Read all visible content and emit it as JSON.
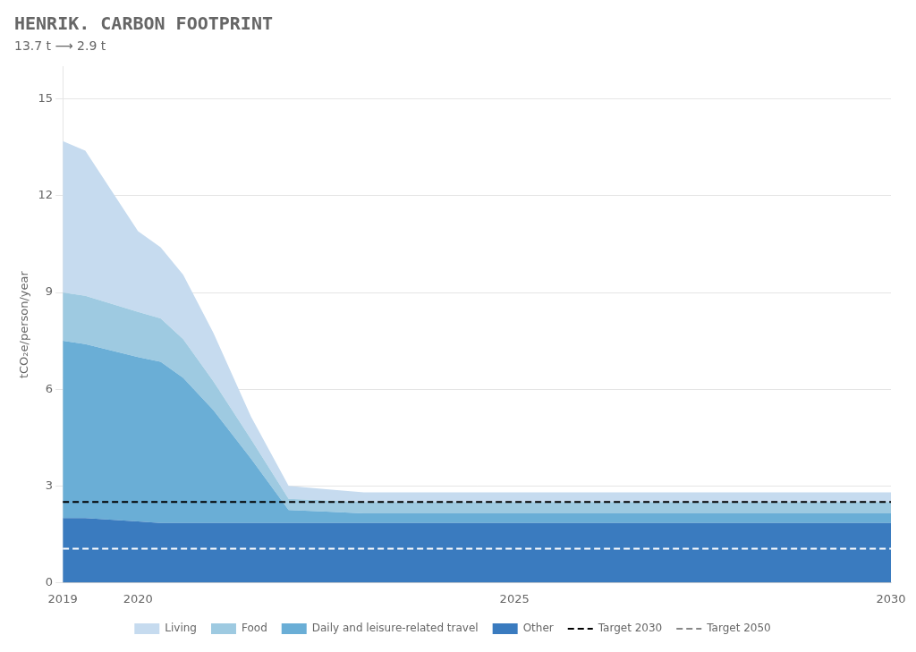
{
  "chart_data": {
    "type": "area",
    "title": "HENRIK. CARBON FOOTPRINT",
    "subtitle": "13.7 t ⟶ 2.9 t",
    "ylabel": "tCO₂e/person/year",
    "stacked": true,
    "grid": "y",
    "legend": "bottom",
    "xlim": [
      2019,
      2030
    ],
    "xticks": [
      2019,
      2020,
      2025,
      2030
    ],
    "ylim": [
      0,
      16
    ],
    "yticks": [
      0,
      3,
      6,
      9,
      12,
      15
    ],
    "x": [
      2019,
      2019.3,
      2020,
      2020.3,
      2020.6,
      2021,
      2021.5,
      2022,
      2022.5,
      2023,
      2024,
      2025,
      2026,
      2027,
      2028,
      2029,
      2030
    ],
    "series": [
      {
        "name": "Other",
        "color": "#3a7bbf",
        "values": [
          2.0,
          2.0,
          1.9,
          1.85,
          1.85,
          1.85,
          1.85,
          1.85,
          1.85,
          1.85,
          1.85,
          1.85,
          1.85,
          1.85,
          1.85,
          1.85,
          1.85
        ]
      },
      {
        "name": "Daily and leisure-related travel",
        "color": "#6aaed6",
        "values": [
          5.5,
          5.4,
          5.1,
          5.0,
          4.5,
          3.5,
          2.0,
          0.4,
          0.35,
          0.3,
          0.3,
          0.3,
          0.3,
          0.3,
          0.3,
          0.3,
          0.3
        ]
      },
      {
        "name": "Food",
        "color": "#9ecae1",
        "values": [
          1.5,
          1.5,
          1.4,
          1.35,
          1.2,
          0.9,
          0.6,
          0.35,
          0.35,
          0.35,
          0.35,
          0.35,
          0.35,
          0.35,
          0.35,
          0.35,
          0.35
        ]
      },
      {
        "name": "Living",
        "color": "#c6dbef",
        "values": [
          4.7,
          4.5,
          2.5,
          2.2,
          2.0,
          1.5,
          0.7,
          0.4,
          0.35,
          0.3,
          0.3,
          0.3,
          0.3,
          0.3,
          0.3,
          0.3,
          0.3
        ]
      },
      {
        "name": "Target 2030",
        "type": "line",
        "line_style": "dashed",
        "color": "#000000",
        "values": [
          2.5,
          2.5,
          2.5,
          2.5,
          2.5,
          2.5,
          2.5,
          2.5,
          2.5,
          2.5,
          2.5,
          2.5,
          2.5,
          2.5,
          2.5,
          2.5,
          2.5
        ]
      },
      {
        "name": "Target 2050",
        "type": "line",
        "line_style": "dashed",
        "color": "#ffffff",
        "values": [
          1.05,
          1.05,
          1.05,
          1.05,
          1.05,
          1.05,
          1.05,
          1.05,
          1.05,
          1.05,
          1.05,
          1.05,
          1.05,
          1.05,
          1.05,
          1.05,
          1.05
        ]
      }
    ]
  }
}
